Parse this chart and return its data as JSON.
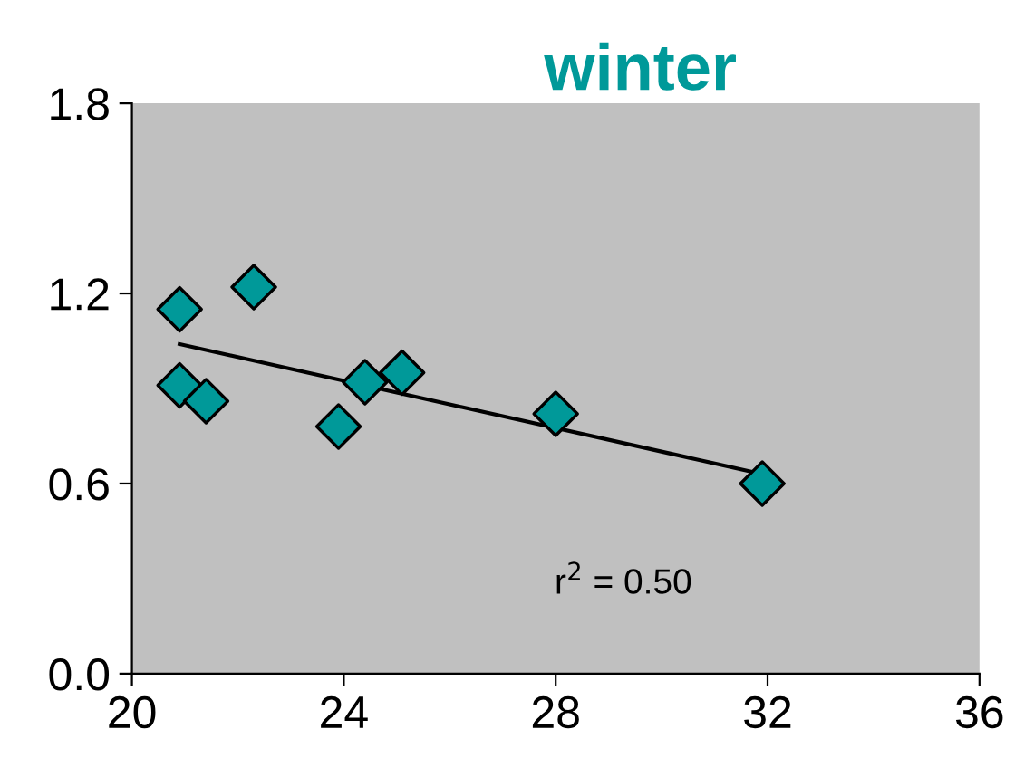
{
  "chart_data": {
    "type": "scatter",
    "title": "winter",
    "xlim": [
      20,
      36
    ],
    "xticks": [
      20,
      24,
      28,
      32,
      36
    ],
    "ylim": [
      0,
      1.8
    ],
    "yticks": [
      {
        "value": 0,
        "label": "0.0"
      },
      1.2,
      0.6,
      1.8
    ],
    "grid": false,
    "annotations": [
      "r$^{2}$ = 0.50"
    ],
    "series": [
      {
        "color": "#009999",
        "marker": "diamond",
        "x": [
          20.9,
          20.9,
          21.4,
          22.3,
          23.9,
          24.4,
          25.1,
          28.0,
          31.9
        ],
        "values": [
          1.15,
          0.91,
          0.86,
          1.22,
          0.78,
          0.92,
          0.95,
          0.82,
          0.6
        ]
      },
      {
        "type": "line",
        "marker": "none",
        "color": "#000000",
        "x": [
          20.9,
          31.9
        ],
        "values": [
          1.04,
          0.63
        ]
      }
    ]
  }
}
